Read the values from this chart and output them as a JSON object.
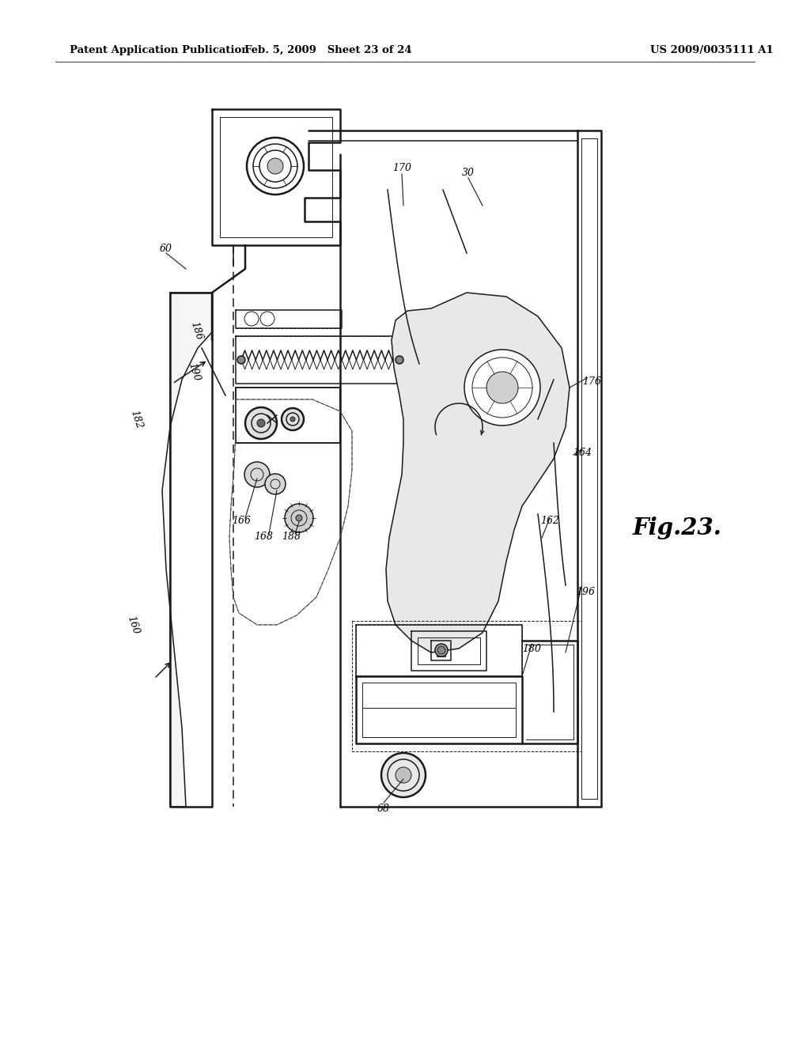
{
  "background_color": "#ffffff",
  "header_left": "Patent Application Publication",
  "header_mid": "Feb. 5, 2009   Sheet 23 of 24",
  "header_right": "US 2009/0035111 A1",
  "fig_label": "Fig.23.",
  "lc": "#1a1a1a"
}
